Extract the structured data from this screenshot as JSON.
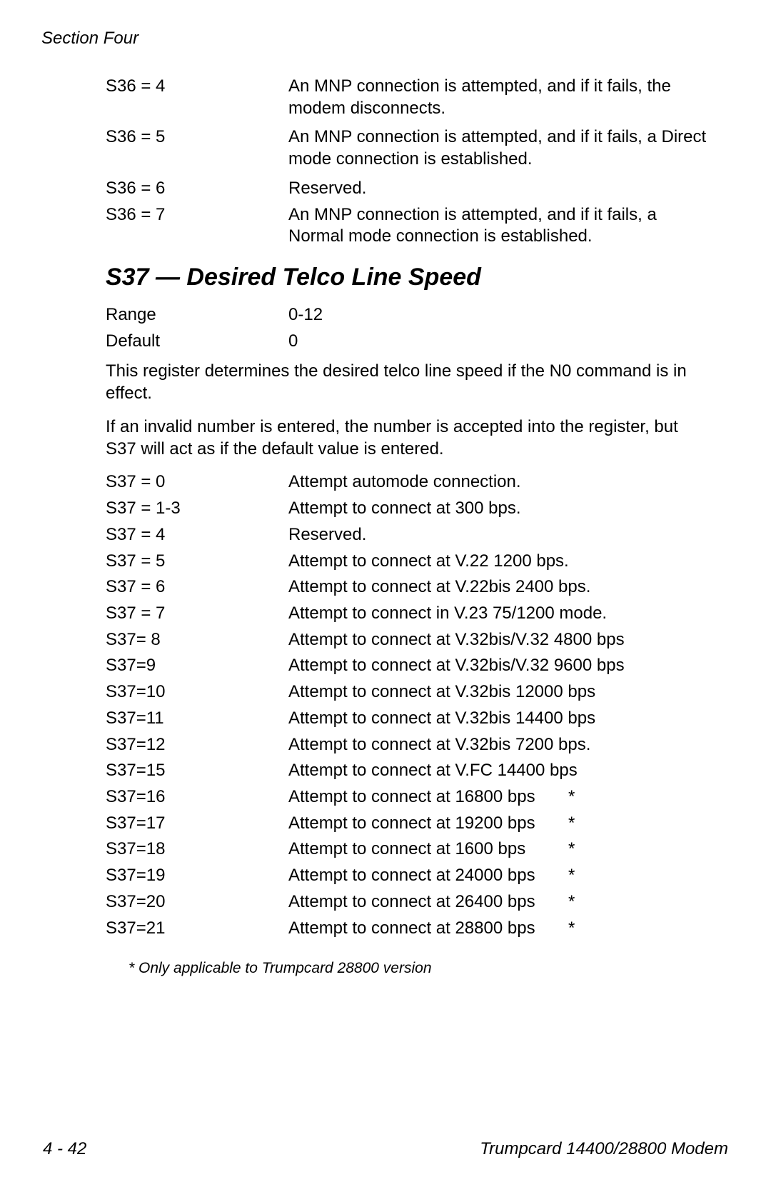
{
  "header": "Section  Four",
  "s36": [
    {
      "k": "S36 = 4",
      "v": "An MNP connection is attempted, and if it fails, the modem  disconnects."
    },
    {
      "k": "S36 = 5",
      "v": "An MNP connection is attempted, and if it fails, a Direct mode connection is established."
    },
    {
      "k": "S36 = 6",
      "v": "Reserved."
    },
    {
      "k": "S36 = 7",
      "v": "An MNP connection is attempted, and if it fails, a Normal mode connection is established."
    }
  ],
  "s37_heading": "S37 — Desired Telco Line Speed",
  "meta": [
    {
      "k": "Range",
      "v": "0-12"
    },
    {
      "k": "Default",
      "v": "0"
    }
  ],
  "para1": "This register determines the desired telco line speed if the N0 command is in effect.",
  "para2": "If an invalid number is entered, the number is accepted into the register, but S37 will act as if the default value is entered.",
  "s37": [
    {
      "k": "S37 = 0",
      "v": "Attempt automode connection."
    },
    {
      "k": "S37 = 1-3",
      "v": "Attempt to connect at 300 bps."
    },
    {
      "k": "S37 = 4",
      "v": "Reserved."
    },
    {
      "k": "S37 = 5",
      "v": "Attempt to connect at V.22 1200 bps."
    },
    {
      "k": "S37 = 6",
      "v": "Attempt to connect at V.22bis 2400 bps."
    },
    {
      "k": "S37 = 7",
      "v": "Attempt to connect in V.23 75/1200 mode."
    },
    {
      "k": "S37= 8",
      "v": "Attempt to connect at V.32bis/V.32 4800 bps"
    },
    {
      "k": "S37=9",
      "v": "Attempt to connect at V.32bis/V.32 9600 bps"
    },
    {
      "k": "S37=10",
      "v": "Attempt to connect at V.32bis 12000 bps"
    },
    {
      "k": "S37=11",
      "v": "Attempt to connect at V.32bis 14400 bps"
    },
    {
      "k": "S37=12",
      "v": "Attempt to connect at V.32bis 7200 bps."
    },
    {
      "k": "S37=15",
      "v": "Attempt to connect at V.FC 14400 bps"
    },
    {
      "k": "S37=16",
      "v": "Attempt to connect at 16800 bps",
      "star": "*"
    },
    {
      "k": "S37=17",
      "v": "Attempt to connect at 19200 bps",
      "star": "*"
    },
    {
      "k": "S37=18",
      "v": "Attempt to connect at 1600 bps",
      "star": "*"
    },
    {
      "k": "S37=19",
      "v": "Attempt to connect at 24000 bps",
      "star": "*"
    },
    {
      "k": "S37=20",
      "v": "Attempt to connect at 26400 bps",
      "star": "*"
    },
    {
      "k": "S37=21",
      "v": "Attempt to connect at 28800 bps",
      "star": "*"
    }
  ],
  "footnote": "*  Only applicable  to  Trumpcard  28800  version",
  "footer_left": "4 - 42",
  "footer_right": "Trumpcard 14400/28800  Modem"
}
